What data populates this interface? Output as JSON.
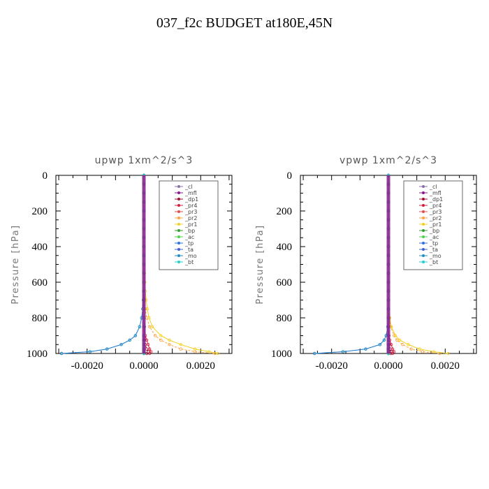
{
  "page_title": "037_f2c  BUDGET at180E,45N",
  "chart_data": [
    {
      "type": "line",
      "title": "upwp   1xm^2/s^3",
      "ylabel": "Pressure [hPa]",
      "xlabel": "",
      "xlim": [
        -0.0031,
        0.0031
      ],
      "ylim": [
        1000,
        0
      ],
      "y_inverted": true,
      "xticks": [
        -0.002,
        0,
        0.002
      ],
      "xtick_labels": [
        "-0.0020",
        "0.0000",
        "0.0020"
      ],
      "yticks": [
        0,
        200,
        400,
        600,
        800,
        1000
      ],
      "ytick_labels": [
        "0",
        "200",
        "400",
        "600",
        "800",
        "1000"
      ],
      "legend_position": "top-right",
      "pressure_levels": [
        0,
        50,
        100,
        150,
        200,
        250,
        300,
        350,
        400,
        450,
        500,
        550,
        600,
        650,
        700,
        750,
        800,
        850,
        900,
        925,
        950,
        975,
        990,
        1000
      ],
      "series": [
        {
          "name": "_cl",
          "color": "#8a6fa8",
          "values": [
            0,
            0,
            0,
            0,
            0,
            0,
            0,
            0,
            0,
            0,
            0,
            0,
            0,
            0,
            0,
            0,
            0,
            0,
            0,
            0,
            0,
            0,
            0,
            0
          ]
        },
        {
          "name": "_mfl",
          "color": "#8b1a8b",
          "values": [
            0,
            0,
            0,
            0,
            0,
            0,
            0,
            0,
            0,
            0,
            0,
            0,
            0,
            0,
            0,
            0,
            0,
            0,
            0,
            0,
            0,
            0,
            0,
            0
          ]
        },
        {
          "name": "_dp1",
          "color": "#a01030",
          "values": [
            0,
            0,
            0,
            0,
            0,
            0,
            0,
            0,
            0,
            0,
            0,
            0,
            0,
            0,
            0,
            0,
            0,
            0,
            0,
            2e-05,
            5e-05,
            0.0001,
            0.00015,
            0.0001
          ]
        },
        {
          "name": "_pr4",
          "color": "#d02040",
          "values": [
            0,
            0,
            0,
            0,
            0,
            0,
            0,
            0,
            0,
            0,
            0,
            0,
            0,
            0,
            0,
            0,
            0,
            2e-05,
            5e-05,
            0.0001,
            0.00015,
            0.0002,
            0.00025,
            0.0002
          ]
        },
        {
          "name": "_pr3",
          "color": "#e05050",
          "values": [
            0,
            0,
            0,
            0,
            0,
            0,
            0,
            0,
            0,
            0,
            0,
            0,
            0,
            0,
            0,
            0,
            0,
            0,
            0,
            0,
            0,
            0,
            0,
            0
          ]
        },
        {
          "name": "_pr2",
          "color": "#ffa040",
          "values": [
            0,
            0,
            0,
            0,
            0,
            0,
            0,
            0,
            0,
            0,
            0,
            0,
            0,
            0,
            2e-05,
            5e-05,
            0.0001,
            0.0002,
            0.0004,
            0.0006,
            0.0009,
            0.0013,
            0.0018,
            0.0025
          ]
        },
        {
          "name": "_pr1",
          "color": "#f0d020",
          "values": [
            0,
            0,
            0,
            0,
            0,
            0,
            0,
            0,
            0,
            0,
            1e-05,
            2e-05,
            3e-05,
            5e-05,
            8e-05,
            0.00012,
            0.00018,
            0.0003,
            0.0006,
            0.0009,
            0.0013,
            0.0018,
            0.0023,
            0.0026
          ]
        },
        {
          "name": "_bp",
          "color": "#30a030",
          "values": [
            0,
            0,
            0,
            0,
            0,
            0,
            0,
            0,
            0,
            0,
            0,
            0,
            0,
            0,
            0,
            0,
            0,
            0,
            0,
            0,
            0,
            0,
            0,
            0
          ]
        },
        {
          "name": "_ac",
          "color": "#50d050",
          "values": [
            0,
            0,
            0,
            0,
            0,
            0,
            0,
            0,
            0,
            0,
            0,
            0,
            0,
            0,
            0,
            0,
            0,
            0,
            0,
            0,
            0,
            0,
            0,
            0
          ]
        },
        {
          "name": "_tp",
          "color": "#3070e0",
          "values": [
            0,
            0,
            0,
            0,
            0,
            0,
            0,
            0,
            0,
            0,
            0,
            0,
            0,
            0,
            -2e-05,
            -4e-05,
            -8e-05,
            -0.00015,
            -0.0003,
            -0.0005,
            -0.0008,
            -0.0013,
            -0.0019,
            -0.0029
          ]
        },
        {
          "name": "_ta",
          "color": "#4060d0",
          "values": [
            0,
            0,
            0,
            0,
            0,
            0,
            0,
            0,
            0,
            0,
            0,
            0,
            0,
            0,
            0,
            0,
            0,
            0,
            0,
            0,
            0,
            0,
            0,
            0
          ]
        },
        {
          "name": "_mo",
          "color": "#2090c0",
          "values": [
            0,
            0,
            0,
            0,
            0,
            0,
            0,
            0,
            0,
            0,
            0,
            0,
            0,
            -1e-05,
            -2e-05,
            -4e-05,
            -8e-05,
            -0.00015,
            -0.0003,
            -0.0005,
            -0.0008,
            -0.0013,
            -0.0019,
            -0.0029
          ]
        },
        {
          "name": "_bt",
          "color": "#20d0d0",
          "values": [
            0,
            0,
            0,
            0,
            0,
            0,
            0,
            0,
            0,
            0,
            0,
            0,
            0,
            0,
            0,
            0,
            0,
            0,
            0,
            0,
            0,
            0,
            0,
            0
          ]
        }
      ]
    },
    {
      "type": "line",
      "title": "vpwp   1xm^2/s^3",
      "ylabel": "Pressure [hPa]",
      "xlabel": "",
      "xlim": [
        -0.0031,
        0.0031
      ],
      "ylim": [
        1000,
        0
      ],
      "y_inverted": true,
      "xticks": [
        -0.002,
        0,
        0.002
      ],
      "xtick_labels": [
        "-0.0020",
        "0.0000",
        "0.0020"
      ],
      "yticks": [
        0,
        200,
        400,
        600,
        800,
        1000
      ],
      "ytick_labels": [
        "0",
        "200",
        "400",
        "600",
        "800",
        "1000"
      ],
      "legend_position": "top-right",
      "pressure_levels": [
        0,
        50,
        100,
        150,
        200,
        250,
        300,
        350,
        400,
        450,
        500,
        550,
        600,
        650,
        700,
        750,
        800,
        850,
        900,
        925,
        950,
        975,
        990,
        1000
      ],
      "series": [
        {
          "name": "_cl",
          "color": "#8a6fa8",
          "values": [
            0,
            0,
            0,
            0,
            0,
            0,
            0,
            0,
            0,
            0,
            0,
            0,
            0,
            0,
            0,
            0,
            0,
            0,
            0,
            0,
            0,
            0,
            0,
            0
          ]
        },
        {
          "name": "_mfl",
          "color": "#8b1a8b",
          "values": [
            0,
            0,
            0,
            0,
            0,
            0,
            0,
            0,
            0,
            0,
            0,
            0,
            0,
            0,
            0,
            0,
            0,
            0,
            0,
            0,
            0,
            0,
            0,
            0
          ]
        },
        {
          "name": "_dp1",
          "color": "#a01030",
          "values": [
            0,
            0,
            0,
            0,
            0,
            0,
            0,
            0,
            0,
            0,
            0,
            0,
            0,
            0,
            0,
            0,
            0,
            0,
            0,
            0,
            3e-05,
            6e-05,
            0.0001,
            8e-05
          ]
        },
        {
          "name": "_pr4",
          "color": "#d02040",
          "values": [
            0,
            0,
            0,
            0,
            0,
            0,
            0,
            0,
            0,
            0,
            0,
            0,
            0,
            0,
            0,
            0,
            0,
            0,
            2e-05,
            5e-05,
            0.0001,
            0.00015,
            0.0002,
            0.00015
          ]
        },
        {
          "name": "_pr3",
          "color": "#e05050",
          "values": [
            0,
            0,
            0,
            0,
            0,
            0,
            0,
            0,
            0,
            0,
            0,
            0,
            0,
            0,
            0,
            0,
            0,
            0,
            0,
            0,
            0,
            0,
            0,
            0
          ]
        },
        {
          "name": "_pr2",
          "color": "#ffa040",
          "values": [
            0,
            0,
            0,
            0,
            0,
            0,
            0,
            0,
            0,
            0,
            0,
            0,
            0,
            0,
            0,
            0,
            3e-05,
            8e-05,
            0.0002,
            0.0003,
            0.0005,
            0.0008,
            0.0012,
            0.0018
          ]
        },
        {
          "name": "_pr1",
          "color": "#f0d020",
          "values": [
            0,
            0,
            0,
            0,
            0,
            0,
            0,
            0,
            0,
            0,
            0,
            0,
            0,
            0,
            0,
            0,
            5e-05,
            0.0001,
            0.00025,
            0.0004,
            0.0007,
            0.0011,
            0.0016,
            0.0021
          ]
        },
        {
          "name": "_bp",
          "color": "#30a030",
          "values": [
            0,
            0,
            0,
            0,
            0,
            0,
            0,
            0,
            0,
            0,
            0,
            0,
            0,
            0,
            0,
            0,
            0,
            0,
            0,
            0,
            0,
            0,
            0,
            0
          ]
        },
        {
          "name": "_ac",
          "color": "#50d050",
          "values": [
            0,
            0,
            0,
            0,
            0,
            0,
            0,
            0,
            0,
            0,
            0,
            0,
            0,
            0,
            0,
            0,
            0,
            0,
            0,
            0,
            0,
            0,
            0,
            0
          ]
        },
        {
          "name": "_tp",
          "color": "#3070e0",
          "values": [
            0,
            0,
            0,
            0,
            0,
            0,
            0,
            0,
            0,
            0,
            0,
            0,
            0,
            0,
            0,
            0,
            0,
            -2e-05,
            -8e-05,
            -0.00015,
            -0.0003,
            -0.0008,
            -0.0016,
            -0.0026
          ]
        },
        {
          "name": "_ta",
          "color": "#4060d0",
          "values": [
            0,
            0,
            0,
            0,
            0,
            0,
            0,
            0,
            0,
            0,
            0,
            0,
            0,
            0,
            0,
            0,
            0,
            0,
            0,
            0,
            0,
            0,
            0,
            0
          ]
        },
        {
          "name": "_mo",
          "color": "#2090c0",
          "values": [
            0,
            0,
            0,
            0,
            0,
            0,
            0,
            0,
            0,
            0,
            0,
            0,
            0,
            0,
            0,
            0,
            0,
            -2e-05,
            -8e-05,
            -0.00015,
            -0.0003,
            -0.0008,
            -0.0016,
            -0.0026
          ]
        },
        {
          "name": "_bt",
          "color": "#20d0d0",
          "values": [
            0,
            0,
            0,
            0,
            0,
            0,
            0,
            0,
            0,
            0,
            0,
            0,
            0,
            0,
            0,
            0,
            0,
            0,
            0,
            0,
            0,
            0,
            0,
            0
          ]
        }
      ]
    }
  ]
}
